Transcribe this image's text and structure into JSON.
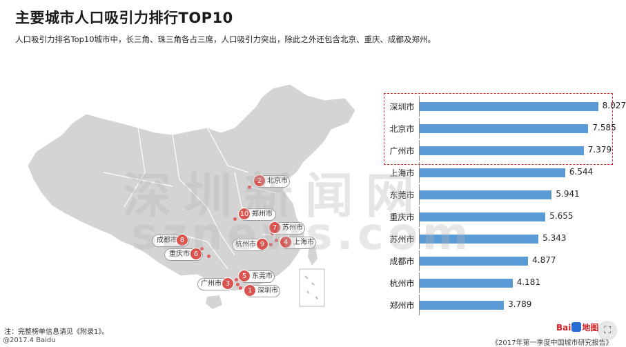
{
  "header": {
    "title": "主要城市人口吸引力排行TOP10",
    "subtitle": "人口吸引力排名Top10城市中，长三角、珠三角各占三席，人口吸引力突出，除此之外还包含北京、重庆、成都及郑州。"
  },
  "map": {
    "cities": [
      {
        "rank": "2",
        "name": "北京市"
      },
      {
        "rank": "10",
        "name": "郑州市"
      },
      {
        "rank": "7",
        "name": "苏州市"
      },
      {
        "rank": "8",
        "name": "成都市"
      },
      {
        "rank": "9",
        "name": "杭州市"
      },
      {
        "rank": "4",
        "name": "上海市"
      },
      {
        "rank": "6",
        "name": "重庆市"
      },
      {
        "rank": "5",
        "name": "东莞市"
      },
      {
        "rank": "3",
        "name": "广州市"
      },
      {
        "rank": "1",
        "name": "深圳市"
      }
    ]
  },
  "chart_data": {
    "type": "bar",
    "orientation": "horizontal",
    "categories": [
      "深圳市",
      "北京市",
      "广州市",
      "上海市",
      "东莞市",
      "重庆市",
      "苏州市",
      "成都市",
      "杭州市",
      "郑州市"
    ],
    "values": [
      8.027,
      7.585,
      7.379,
      6.544,
      5.941,
      5.655,
      5.343,
      4.877,
      4.181,
      3.789
    ],
    "value_labels": [
      "8.027",
      "7.585",
      "7.379",
      "6.544",
      "5.941",
      "5.655",
      "5.343",
      "4.877",
      "4.181",
      "3.789"
    ],
    "xlim": [
      0,
      9
    ],
    "grid": false,
    "highlight_top": 3,
    "bar_color": "#5b9bd5",
    "highlight_color": "#d92c2c"
  },
  "watermark": {
    "cn": "深圳新闻网",
    "en": "sznews.com"
  },
  "footer": {
    "note": "注：完整榜单信息请见《附录1》。",
    "copyright": "@2017.4 Baidu",
    "report": "《2017年第一季度中国城市研究报告》",
    "logo_text_1": "Bai",
    "logo_text_2": "地图"
  },
  "controls": {
    "fullscreen_icon": "⛶"
  },
  "colors": {
    "rank_badge": "#d9534f",
    "map_fill": "#d4d4d4"
  }
}
